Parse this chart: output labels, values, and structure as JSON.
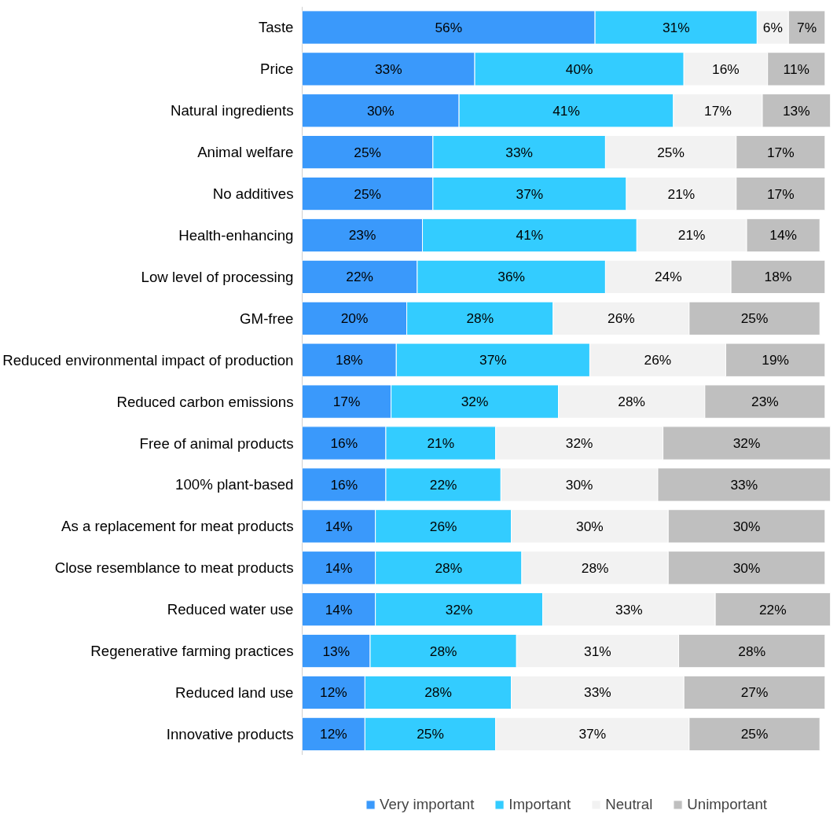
{
  "chart_data": {
    "type": "bar",
    "orientation": "horizontal",
    "stacked": true,
    "legend": "bottom",
    "grid": false,
    "categories": [
      "Taste",
      "Price",
      "Natural ingredients",
      "Animal welfare",
      "No additives",
      "Health-enhancing",
      "Low level of processing",
      "GM-free",
      "Reduced environmental impact of production",
      "Reduced carbon emissions",
      "Free of animal products",
      "100% plant-based",
      "As a replacement for meat products",
      "Close resemblance to meat products",
      "Reduced water use",
      "Regenerative farming practices",
      "Reduced land use",
      "Innovative products"
    ],
    "series": [
      {
        "name": "Very important",
        "color": "#3a99fb",
        "values": [
          56,
          33,
          30,
          25,
          25,
          23,
          22,
          20,
          18,
          17,
          16,
          16,
          14,
          14,
          14,
          13,
          12,
          12
        ],
        "value_labels": [
          "56%",
          "33%",
          "30%",
          "25%",
          "25%",
          "23%",
          "22%",
          "20%",
          "18%",
          "17%",
          "16%",
          "16%",
          "14%",
          "14%",
          "14%",
          "13%",
          "12%",
          "12%"
        ]
      },
      {
        "name": "Important",
        "color": "#33ccff",
        "values": [
          31,
          40,
          41,
          33,
          37,
          41,
          36,
          28,
          37,
          32,
          21,
          22,
          26,
          28,
          32,
          28,
          28,
          25
        ],
        "value_labels": [
          "31%",
          "40%",
          "41%",
          "33%",
          "37%",
          "41%",
          "36%",
          "28%",
          "37%",
          "32%",
          "21%",
          "22%",
          "26%",
          "28%",
          "32%",
          "28%",
          "28%",
          "25%"
        ]
      },
      {
        "name": "Neutral",
        "color": "#f2f2f2",
        "values": [
          6,
          16,
          17,
          25,
          21,
          21,
          24,
          26,
          26,
          28,
          32,
          30,
          30,
          28,
          33,
          31,
          33,
          37
        ],
        "value_labels": [
          "6%",
          "16%",
          "17%",
          "25%",
          "21%",
          "21%",
          "24%",
          "26%",
          "26%",
          "28%",
          "32%",
          "30%",
          "30%",
          "28%",
          "33%",
          "31%",
          "33%",
          "37%"
        ]
      },
      {
        "name": "Unimportant",
        "color": "#bfbfbf",
        "values": [
          7,
          11,
          13,
          17,
          17,
          14,
          18,
          25,
          19,
          23,
          32,
          33,
          30,
          30,
          22,
          28,
          27,
          25
        ],
        "value_labels": [
          "7%",
          "11%",
          "13%",
          "17%",
          "17%",
          "14%",
          "18%",
          "25%",
          "19%",
          "23%",
          "32%",
          "33%",
          "30%",
          "30%",
          "22%",
          "28%",
          "27%",
          "25%"
        ]
      }
    ]
  }
}
